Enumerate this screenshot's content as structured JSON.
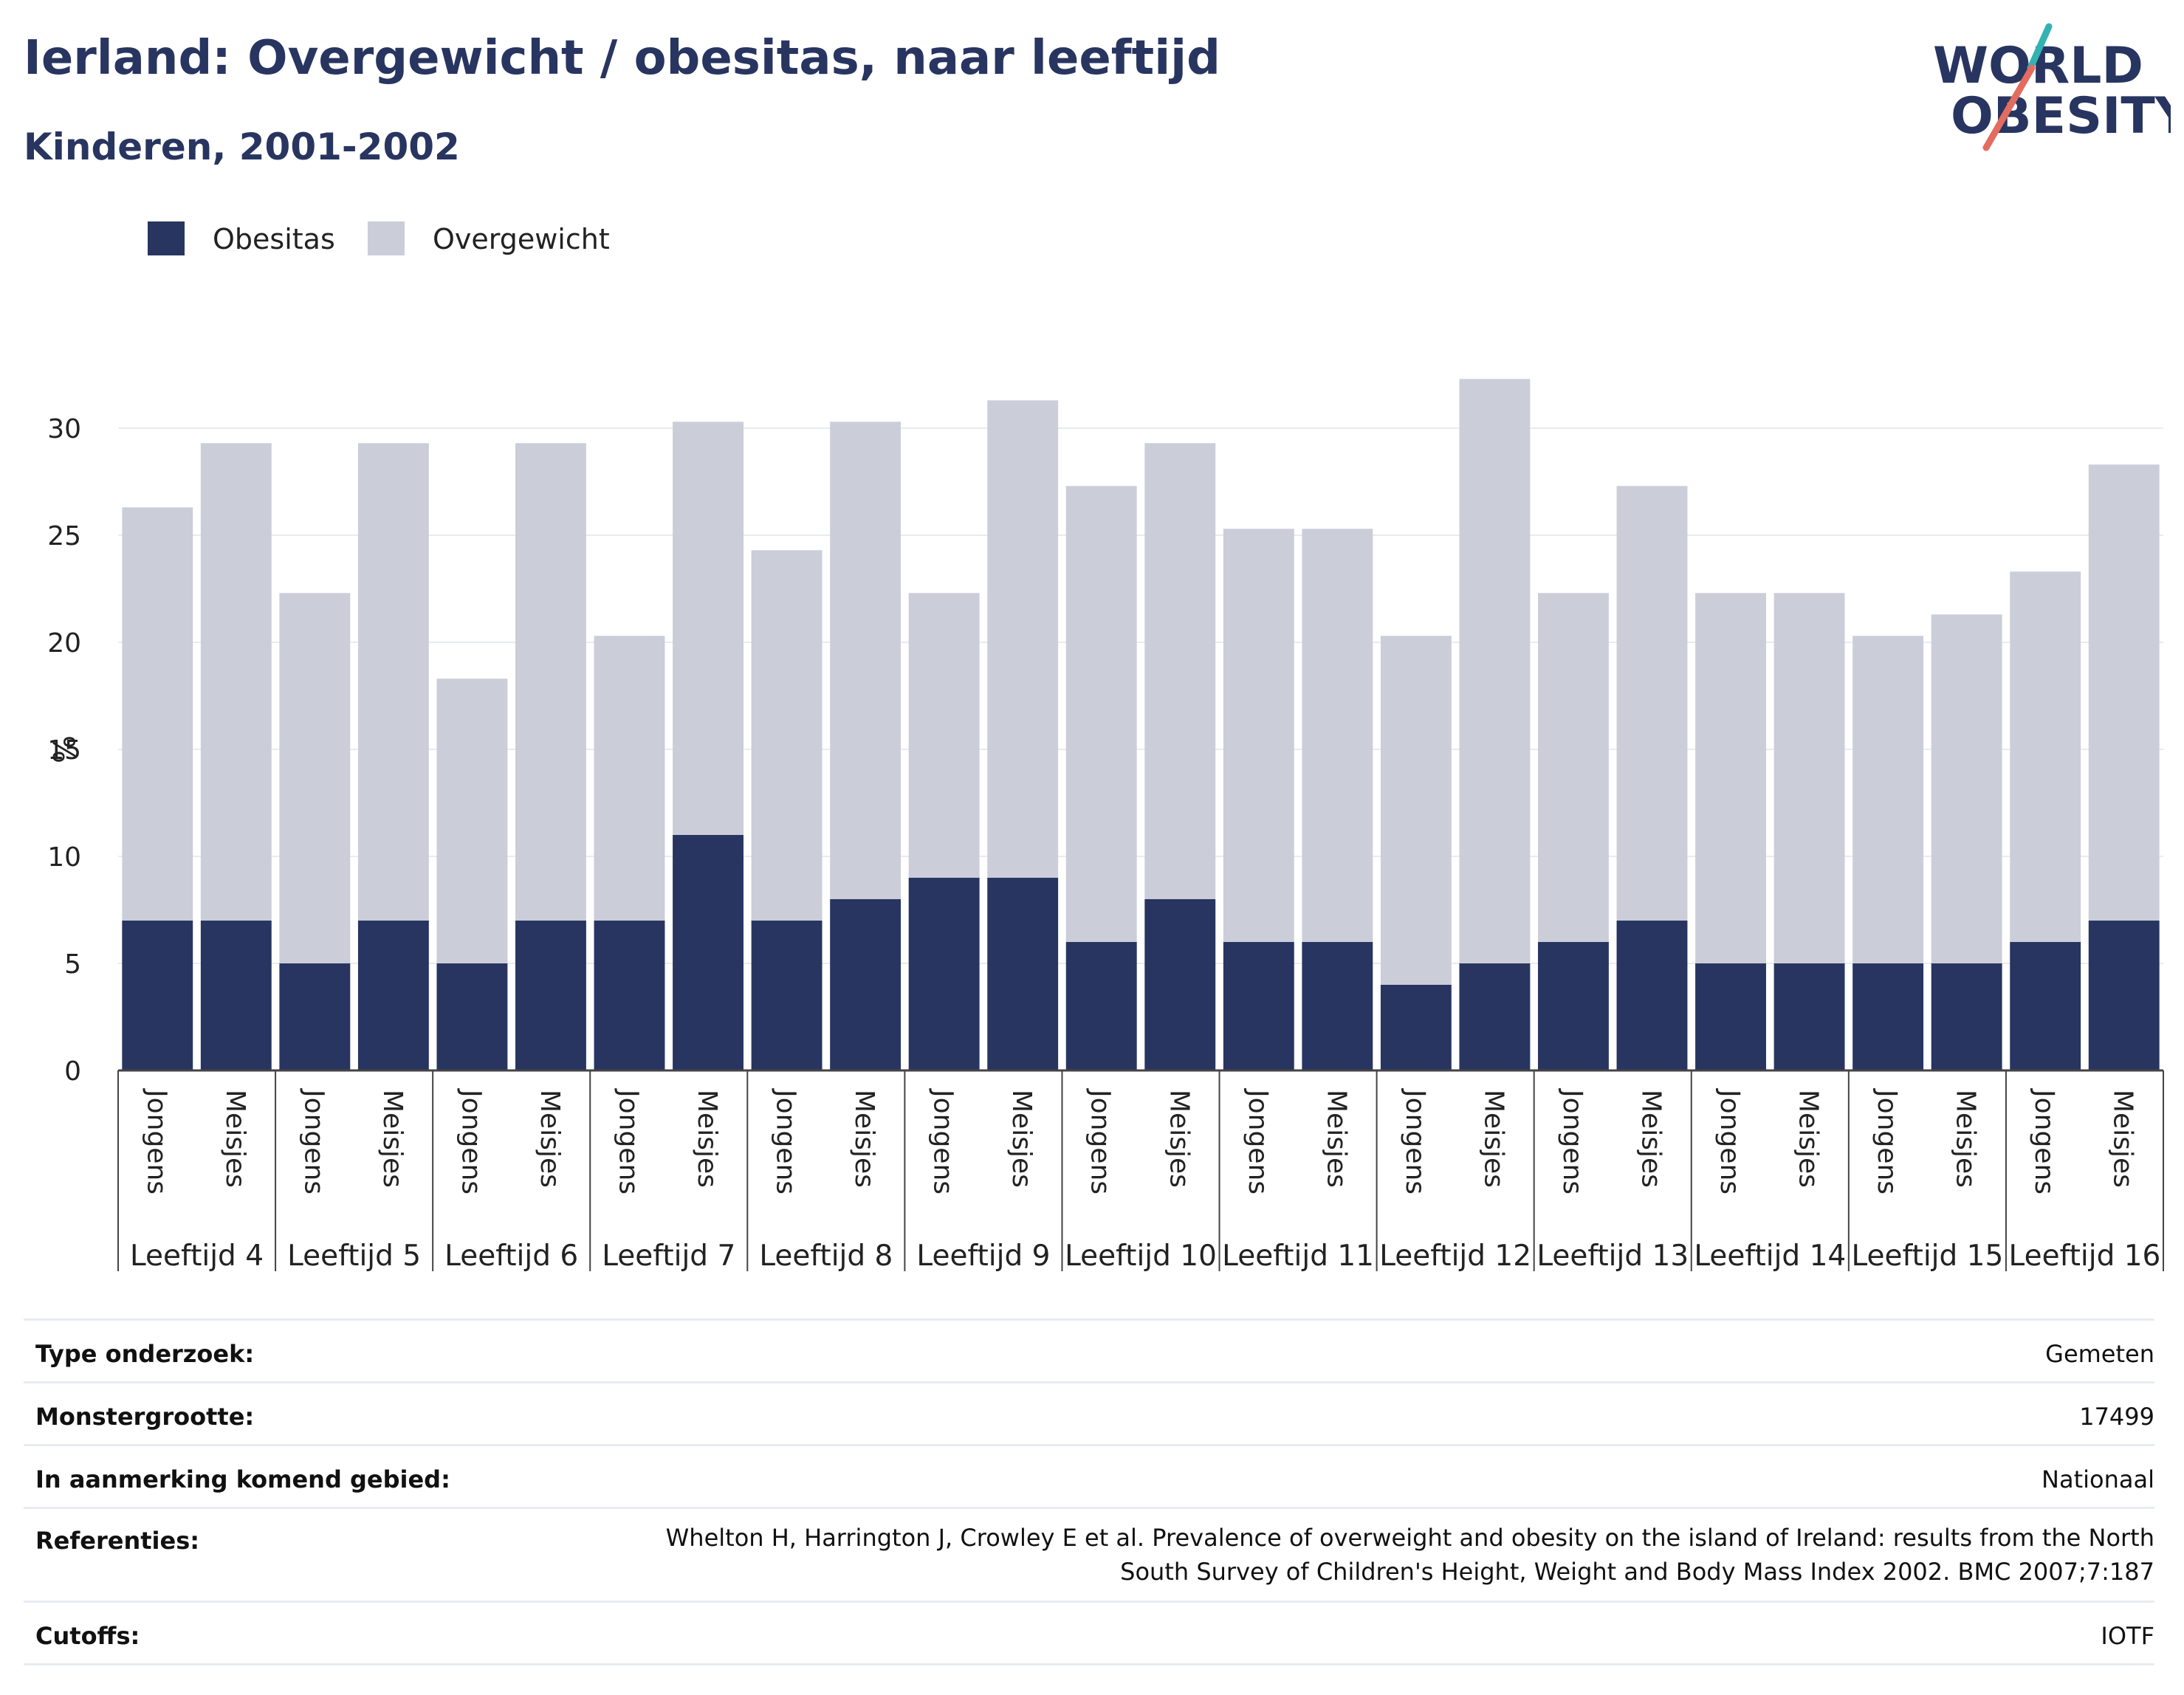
{
  "header": {
    "title": "Ierland: Overgewicht / obesitas, naar leeftijd",
    "subtitle": "Kinderen, 2001-2002"
  },
  "logo": {
    "line1": "WORLD",
    "line2": "OBESITY",
    "accent_teal": "#34b2b2",
    "accent_coral": "#e36c5f",
    "text_color": "#283560"
  },
  "colors": {
    "obesitas": "#283560",
    "overgewicht": "#cbcdd9",
    "gridline": "#e9ebf0",
    "axis": "#444444"
  },
  "chart_data": {
    "type": "bar",
    "stacked": true,
    "ylabel": "%",
    "ylim": [
      0,
      33
    ],
    "yticks": [
      0,
      5,
      10,
      15,
      20,
      25,
      30
    ],
    "grid": true,
    "legend_position": "top-left",
    "groups": [
      "Leeftijd 4",
      "Leeftijd 5",
      "Leeftijd 6",
      "Leeftijd 7",
      "Leeftijd 8",
      "Leeftijd 9",
      "Leeftijd 10",
      "Leeftijd 11",
      "Leeftijd 12",
      "Leeftijd 13",
      "Leeftijd 14",
      "Leeftijd 15",
      "Leeftijd 16"
    ],
    "subcategories": [
      "Jongens",
      "Meisjes"
    ],
    "series": [
      {
        "name": "Obesitas",
        "values": [
          7,
          7,
          5,
          7,
          5,
          7,
          7,
          11,
          7,
          8,
          9,
          9,
          6,
          8,
          6,
          6,
          4,
          5,
          6,
          7,
          5,
          5,
          5,
          5,
          6,
          7
        ]
      },
      {
        "name": "Overgewicht",
        "values": [
          19.3,
          22.3,
          17.3,
          22.3,
          13.3,
          22.3,
          13.3,
          19.3,
          17.3,
          22.3,
          13.3,
          22.3,
          21.3,
          21.3,
          19.3,
          19.3,
          16.3,
          27.3,
          16.3,
          20.3,
          17.3,
          17.3,
          15.3,
          16.3,
          17.3,
          21.3
        ]
      }
    ]
  },
  "info_table": {
    "rows": [
      {
        "label": "Type onderzoek:",
        "value": "Gemeten"
      },
      {
        "label": "Monstergrootte:",
        "value": "17499"
      },
      {
        "label": "In aanmerking komend gebied:",
        "value": "Nationaal"
      },
      {
        "label": "Referenties:",
        "value": "Whelton H, Harrington J, Crowley E et al. Prevalence of overweight and obesity on the island of Ireland: results from the North South Survey of Children's Height, Weight and Body Mass Index 2002. BMC 2007;7:187"
      },
      {
        "label": "Cutoffs:",
        "value": "IOTF"
      }
    ]
  }
}
